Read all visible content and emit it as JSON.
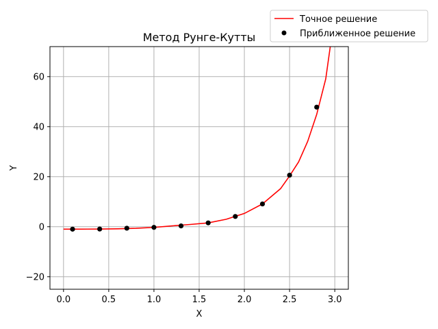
{
  "chart_data": {
    "type": "line",
    "title": "Метод Рунге-Кутты",
    "xlabel": "X",
    "ylabel": "Y",
    "xlim": [
      -0.15,
      3.15
    ],
    "ylim": [
      -25,
      72
    ],
    "xticks": [
      0.0,
      0.5,
      1.0,
      1.5,
      2.0,
      2.5,
      3.0
    ],
    "xtick_labels": [
      "0.0",
      "0.5",
      "1.0",
      "1.5",
      "2.0",
      "2.5",
      "3.0"
    ],
    "yticks": [
      -20,
      0,
      20,
      40,
      60
    ],
    "ytick_labels": [
      "−20",
      "0",
      "20",
      "40",
      "60"
    ],
    "grid": true,
    "legend_position": "top-right, outside plot",
    "series": [
      {
        "name": "Точное решение",
        "kind": "line",
        "color": "#ff0000",
        "x": [
          0.0,
          0.2,
          0.4,
          0.6,
          0.8,
          1.0,
          1.2,
          1.4,
          1.6,
          1.8,
          2.0,
          2.2,
          2.4,
          2.5,
          2.6,
          2.7,
          2.8,
          2.9,
          2.95
        ],
        "y": [
          -0.98,
          -0.97,
          -0.93,
          -0.84,
          -0.64,
          -0.27,
          0.34,
          0.89,
          1.53,
          2.98,
          5.3,
          9.1,
          15.2,
          20.3,
          25.9,
          34.1,
          44.9,
          59.1,
          72.0
        ]
      },
      {
        "name": "Приближенное решение",
        "kind": "scatter",
        "color": "#000000",
        "x": [
          0.1,
          0.4,
          0.7,
          1.0,
          1.3,
          1.6,
          1.9,
          2.2,
          2.5,
          2.8
        ],
        "y": [
          -0.98,
          -0.93,
          -0.6,
          -0.27,
          0.32,
          1.53,
          4.1,
          9.1,
          20.6,
          47.8
        ]
      }
    ]
  }
}
